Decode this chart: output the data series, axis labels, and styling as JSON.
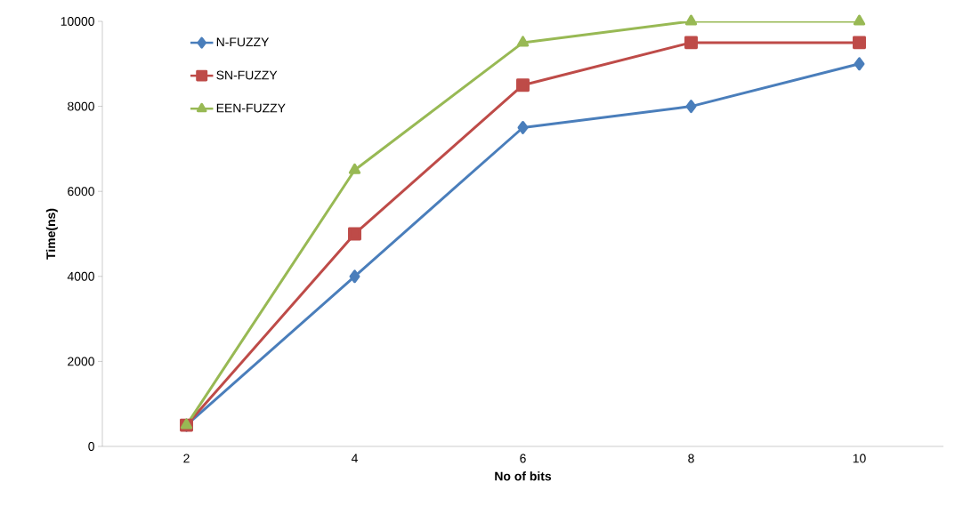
{
  "chart_data": {
    "type": "line",
    "xlabel": "No of bits",
    "ylabel": "Time(ns)",
    "categories": [
      "2",
      "4",
      "6",
      "8",
      "10"
    ],
    "series": [
      {
        "name": "N-FUZZY",
        "color": "#4a7ebb",
        "marker": "diamond",
        "values": [
          500,
          4000,
          7500,
          8000,
          9000
        ]
      },
      {
        "name": "SN-FUZZY",
        "color": "#be4b48",
        "marker": "square",
        "values": [
          500,
          5000,
          8500,
          9500,
          9500
        ]
      },
      {
        "name": "EEN-FUZZY",
        "color": "#98b954",
        "marker": "triangle",
        "values": [
          500,
          6500,
          9500,
          10000,
          10000
        ]
      }
    ],
    "ylim": [
      0,
      10000
    ],
    "yticks": [
      0,
      2000,
      4000,
      6000,
      8000,
      10000
    ],
    "grid": false,
    "legend": "top left",
    "line_style": "solid"
  }
}
